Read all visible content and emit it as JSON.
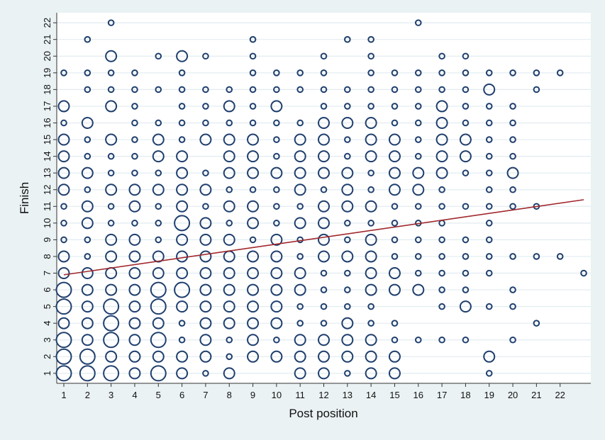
{
  "chart_data": {
    "type": "scatter",
    "title": "",
    "xlabel": "Post position",
    "ylabel": "Finish",
    "xlim": [
      0.7,
      23.3
    ],
    "ylim": [
      0.4,
      22.6
    ],
    "xticks": [
      1,
      2,
      3,
      4,
      5,
      6,
      7,
      8,
      9,
      10,
      11,
      12,
      13,
      14,
      15,
      16,
      17,
      18,
      19,
      20,
      21,
      22
    ],
    "yticks": [
      1,
      2,
      3,
      4,
      5,
      6,
      7,
      8,
      9,
      10,
      11,
      12,
      13,
      14,
      15,
      16,
      17,
      18,
      19,
      20,
      21,
      22
    ],
    "grid": "horizontal",
    "legend": "none",
    "marker_style": "hollow circles, area proportional to frequency",
    "colors": {
      "marker": "#1f3f6e",
      "fit_line": "#a0282d",
      "plot_background": "#ffffff",
      "grid": "#e2ecf0",
      "page_background": "#eaf2f3"
    },
    "fit_line": {
      "x": [
        1,
        23
      ],
      "y": [
        6.9,
        11.4
      ]
    },
    "counts": [
      [
        3,
        3,
        3,
        2,
        3,
        2,
        1,
        2,
        0,
        0,
        2,
        2,
        1,
        2,
        2,
        0,
        0,
        0,
        1,
        0,
        0,
        0
      ],
      [
        3,
        3,
        2,
        2,
        2,
        2,
        2,
        1,
        2,
        2,
        2,
        2,
        2,
        2,
        2,
        0,
        0,
        0,
        2,
        0,
        0,
        0
      ],
      [
        3,
        2,
        3,
        2,
        3,
        1,
        2,
        1,
        2,
        1,
        2,
        2,
        2,
        2,
        1,
        1,
        1,
        1,
        0,
        1,
        0,
        0
      ],
      [
        2,
        2,
        3,
        2,
        2,
        1,
        2,
        2,
        2,
        2,
        1,
        1,
        2,
        1,
        1,
        0,
        0,
        0,
        0,
        0,
        1,
        0
      ],
      [
        3,
        2,
        3,
        2,
        3,
        2,
        2,
        2,
        2,
        2,
        1,
        1,
        1,
        1,
        0,
        0,
        1,
        2,
        1,
        1,
        0,
        0
      ],
      [
        3,
        2,
        2,
        2,
        3,
        3,
        2,
        2,
        2,
        2,
        2,
        1,
        1,
        2,
        2,
        2,
        1,
        1,
        0,
        1,
        0,
        0
      ],
      [
        2,
        2,
        2,
        2,
        2,
        2,
        2,
        2,
        2,
        2,
        2,
        1,
        1,
        2,
        2,
        1,
        1,
        1,
        1,
        0,
        0,
        0
      ],
      [
        2,
        1,
        2,
        2,
        2,
        2,
        2,
        2,
        2,
        2,
        1,
        2,
        2,
        2,
        1,
        1,
        1,
        1,
        1,
        1,
        1,
        1
      ],
      [
        1,
        1,
        2,
        2,
        1,
        2,
        2,
        2,
        1,
        2,
        1,
        2,
        1,
        2,
        1,
        1,
        1,
        1,
        1,
        0,
        0,
        0
      ],
      [
        1,
        2,
        1,
        1,
        1,
        3,
        2,
        1,
        2,
        1,
        2,
        2,
        1,
        1,
        1,
        1,
        1,
        0,
        1,
        0,
        0,
        0
      ],
      [
        1,
        2,
        1,
        2,
        1,
        2,
        1,
        2,
        2,
        1,
        1,
        2,
        2,
        2,
        1,
        1,
        1,
        1,
        1,
        1,
        1,
        0
      ],
      [
        2,
        1,
        2,
        2,
        2,
        2,
        2,
        1,
        1,
        1,
        2,
        1,
        2,
        1,
        2,
        2,
        1,
        0,
        1,
        1,
        0,
        0
      ],
      [
        2,
        2,
        1,
        1,
        1,
        2,
        1,
        2,
        2,
        2,
        2,
        2,
        2,
        1,
        2,
        2,
        2,
        1,
        1,
        2,
        0,
        0
      ],
      [
        2,
        1,
        1,
        1,
        2,
        2,
        0,
        2,
        2,
        1,
        2,
        2,
        1,
        2,
        2,
        1,
        2,
        2,
        1,
        1,
        0,
        0
      ],
      [
        2,
        1,
        2,
        1,
        2,
        1,
        2,
        2,
        2,
        1,
        2,
        2,
        1,
        2,
        2,
        1,
        2,
        2,
        1,
        1,
        0,
        0
      ],
      [
        1,
        2,
        0,
        1,
        1,
        1,
        1,
        1,
        1,
        1,
        1,
        2,
        2,
        2,
        1,
        1,
        2,
        1,
        1,
        1,
        0,
        0
      ],
      [
        2,
        0,
        2,
        1,
        0,
        1,
        1,
        2,
        1,
        2,
        0,
        1,
        1,
        1,
        1,
        1,
        2,
        1,
        1,
        1,
        0,
        0
      ],
      [
        0,
        1,
        1,
        1,
        1,
        1,
        1,
        1,
        1,
        1,
        1,
        1,
        1,
        1,
        1,
        1,
        1,
        1,
        2,
        0,
        1,
        0
      ],
      [
        1,
        1,
        1,
        1,
        0,
        1,
        0,
        0,
        1,
        1,
        1,
        1,
        0,
        1,
        1,
        1,
        1,
        1,
        1,
        1,
        1,
        1
      ],
      [
        0,
        0,
        2,
        0,
        1,
        2,
        1,
        0,
        1,
        0,
        0,
        1,
        0,
        1,
        0,
        0,
        1,
        1,
        0,
        0,
        0,
        0
      ],
      [
        0,
        1,
        0,
        0,
        0,
        0,
        0,
        0,
        1,
        0,
        0,
        0,
        1,
        1,
        0,
        0,
        0,
        0,
        0,
        0,
        0,
        0
      ],
      [
        0,
        0,
        1,
        0,
        0,
        0,
        0,
        0,
        0,
        0,
        0,
        0,
        0,
        0,
        0,
        1,
        0,
        0,
        0,
        0,
        0,
        0
      ]
    ],
    "extra_points": [
      {
        "x": 23,
        "y": 7,
        "count": 1
      }
    ]
  }
}
